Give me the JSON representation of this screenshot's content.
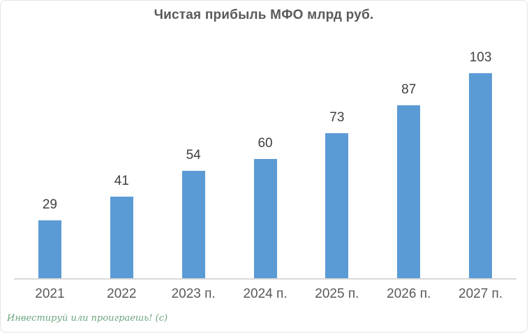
{
  "chart_data": {
    "type": "bar",
    "title": "Чистая прибыль МФО млрд руб.",
    "categories": [
      "2021",
      "2022",
      "2023 п.",
      "2024 п.",
      "2025 п.",
      "2026 п.",
      "2027 п."
    ],
    "values": [
      29,
      41,
      54,
      60,
      73,
      87,
      103
    ],
    "xlabel": "",
    "ylabel": "",
    "ylim": [
      0,
      110
    ],
    "gridlines": false,
    "legend_position": "none",
    "data_labels": true,
    "bar_color": "#5B9BD5"
  },
  "watermark": "Инвестируй или проиграешь! (с)",
  "colors": {
    "background": "#ffffff",
    "title_text": "#595959",
    "data_label_text": "#3f3f3f",
    "axis_label_text": "#595959",
    "axis_line": "#d9d9d9",
    "bar_fill": "#5B9BD5",
    "watermark_text": "#6aa57c"
  }
}
